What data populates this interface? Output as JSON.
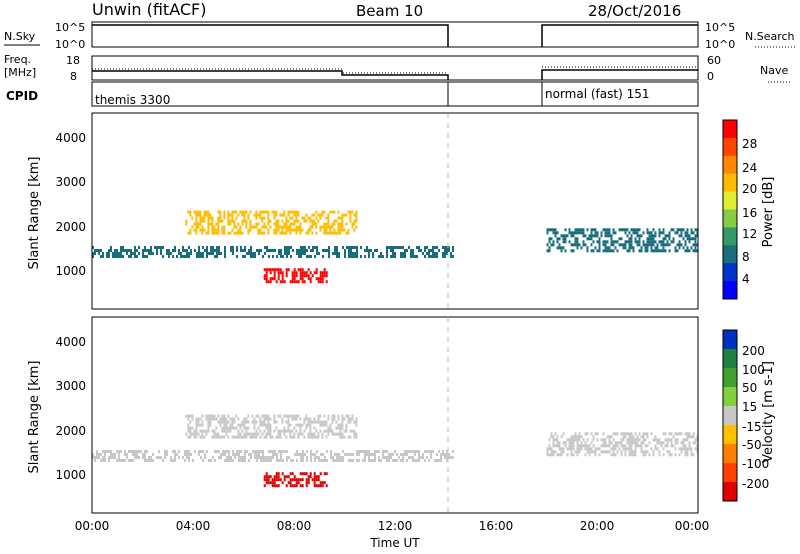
{
  "header": {
    "title": "Unwin (fitACF)",
    "beam": "Beam 10",
    "date": "28/Oct/2016"
  },
  "strips": {
    "nsky_label": "N.Sky",
    "nsky_ticks": [
      "10^5",
      "10^0"
    ],
    "nsearch_label": "N.Search",
    "freq_label_1": "Freq.",
    "freq_label_2": "[MHz]",
    "freq_ticks": [
      "18",
      "8"
    ],
    "nave_ticks": [
      "60",
      "0"
    ],
    "nave_label": "Nave",
    "cpid_label": "CPID",
    "cpid_1": "themis 3300",
    "cpid_2": "normal (fast) 151"
  },
  "x_axis": {
    "label": "Time UT",
    "ticks": [
      "00:00",
      "04:00",
      "08:00",
      "12:00",
      "16:00",
      "20:00",
      "00:00"
    ]
  },
  "y_axis": {
    "label": "Slant Range [km]",
    "ticks": [
      "4000",
      "3000",
      "2000",
      "1000"
    ]
  },
  "colorbar_power": {
    "label": "Power [dB]",
    "ticks": [
      "28",
      "24",
      "20",
      "16",
      "12",
      "8",
      "4"
    ],
    "colors": [
      "#ff0000",
      "#ff4400",
      "#ff8800",
      "#ffbb00",
      "#ddee33",
      "#88cc44",
      "#339966",
      "#1a6d7a",
      "#0033cc",
      "#0000ff"
    ]
  },
  "colorbar_velocity": {
    "label": "Velocity [m s-1]",
    "ticks": [
      "200",
      "100",
      "50",
      "15",
      "-15",
      "-50",
      "-100",
      "-200"
    ],
    "colors": [
      "#0030c0",
      "#208040",
      "#40a030",
      "#80d040",
      "#c8c8c8",
      "#ffc000",
      "#ff8000",
      "#ff4000",
      "#e00000"
    ]
  },
  "chart_data": [
    {
      "type": "heatmap",
      "name": "power",
      "xlabel": "Time UT",
      "ylabel": "Slant Range [km]",
      "xlim": [
        0,
        24
      ],
      "ylim": [
        180,
        4600
      ],
      "data_gap_hours": [
        14.3,
        18.0
      ],
      "echo_bands": [
        {
          "t": [
            0.0,
            14.3
          ],
          "range_km": [
            1350,
            1600
          ],
          "value_db": 8
        },
        {
          "t": [
            3.7,
            10.5
          ],
          "range_km": [
            1900,
            2400
          ],
          "value_db": 20
        },
        {
          "t": [
            6.8,
            9.3
          ],
          "range_km": [
            800,
            1100
          ],
          "value_db": 28
        },
        {
          "t": [
            18.0,
            24.0
          ],
          "range_km": [
            1500,
            2000
          ],
          "value_db": 8
        }
      ]
    },
    {
      "type": "heatmap",
      "name": "velocity",
      "xlabel": "Time UT",
      "ylabel": "Slant Range [km]",
      "xlim": [
        0,
        24
      ],
      "ylim": [
        180,
        4600
      ],
      "data_gap_hours": [
        14.3,
        18.0
      ],
      "echo_bands": [
        {
          "t": [
            0.0,
            14.3
          ],
          "range_km": [
            1350,
            1600
          ],
          "value_ms": 0
        },
        {
          "t": [
            3.7,
            10.5
          ],
          "range_km": [
            1900,
            2400
          ],
          "value_ms": -10
        },
        {
          "t": [
            6.8,
            9.3
          ],
          "range_km": [
            800,
            1100
          ],
          "value_ms": -200
        },
        {
          "t": [
            18.0,
            24.0
          ],
          "range_km": [
            1500,
            2000
          ],
          "value_ms": 0
        }
      ]
    }
  ]
}
